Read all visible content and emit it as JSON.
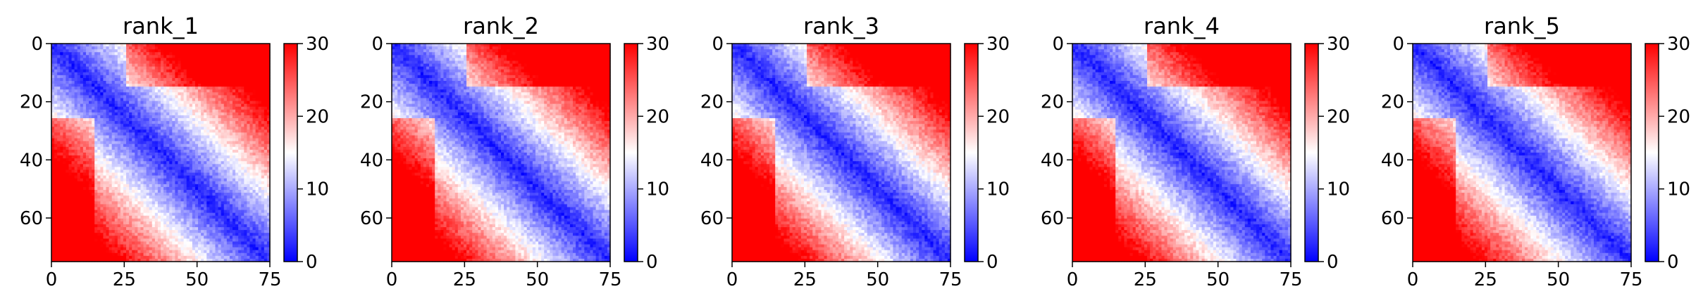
{
  "chart_data": [
    {
      "type": "heatmap",
      "title": "rank_1",
      "x_ticks": [
        "0",
        "25",
        "50",
        "75"
      ],
      "y_ticks": [
        "0",
        "20",
        "40",
        "60"
      ],
      "xlim": [
        0,
        75
      ],
      "ylim": [
        75,
        0
      ],
      "matrix_size": 76,
      "color_scale": {
        "min": 0,
        "max": 30,
        "ticks": [
          "0",
          "10",
          "20",
          "30"
        ],
        "colors": [
          "#0000ff",
          "#ffffff",
          "#ff0000"
        ]
      }
    },
    {
      "type": "heatmap",
      "title": "rank_2",
      "x_ticks": [
        "0",
        "25",
        "50",
        "75"
      ],
      "y_ticks": [
        "0",
        "20",
        "40",
        "60"
      ],
      "xlim": [
        0,
        75
      ],
      "ylim": [
        75,
        0
      ],
      "matrix_size": 76,
      "color_scale": {
        "min": 0,
        "max": 30,
        "ticks": [
          "0",
          "10",
          "20",
          "30"
        ],
        "colors": [
          "#0000ff",
          "#ffffff",
          "#ff0000"
        ]
      }
    },
    {
      "type": "heatmap",
      "title": "rank_3",
      "x_ticks": [
        "0",
        "25",
        "50",
        "75"
      ],
      "y_ticks": [
        "0",
        "20",
        "40",
        "60"
      ],
      "xlim": [
        0,
        75
      ],
      "ylim": [
        75,
        0
      ],
      "matrix_size": 76,
      "color_scale": {
        "min": 0,
        "max": 30,
        "ticks": [
          "0",
          "10",
          "20",
          "30"
        ],
        "colors": [
          "#0000ff",
          "#ffffff",
          "#ff0000"
        ]
      }
    },
    {
      "type": "heatmap",
      "title": "rank_4",
      "x_ticks": [
        "0",
        "25",
        "50",
        "75"
      ],
      "y_ticks": [
        "0",
        "20",
        "40",
        "60"
      ],
      "xlim": [
        0,
        75
      ],
      "ylim": [
        75,
        0
      ],
      "matrix_size": 76,
      "color_scale": {
        "min": 0,
        "max": 30,
        "ticks": [
          "0",
          "10",
          "20",
          "30"
        ],
        "colors": [
          "#0000ff",
          "#ffffff",
          "#ff0000"
        ]
      }
    },
    {
      "type": "heatmap",
      "title": "rank_5",
      "x_ticks": [
        "0",
        "25",
        "50",
        "75"
      ],
      "y_ticks": [
        "0",
        "20",
        "40",
        "60"
      ],
      "xlim": [
        0,
        75
      ],
      "ylim": [
        75,
        0
      ],
      "matrix_size": 76,
      "color_scale": {
        "min": 0,
        "max": 30,
        "ticks": [
          "0",
          "10",
          "20",
          "30"
        ],
        "colors": [
          "#0000ff",
          "#ffffff",
          "#ff0000"
        ]
      }
    }
  ]
}
